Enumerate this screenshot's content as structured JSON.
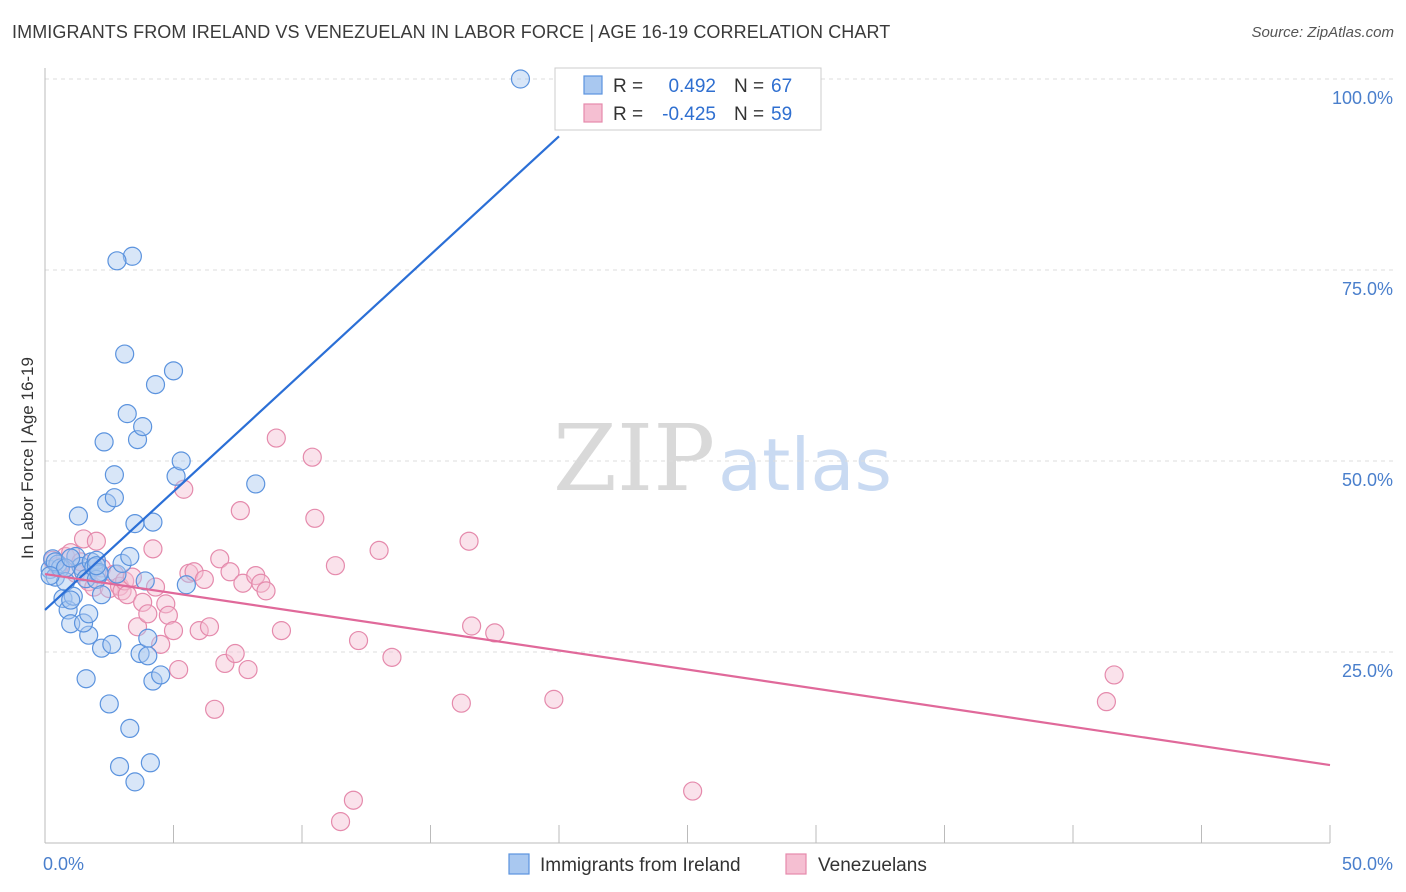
{
  "title": "IMMIGRANTS FROM IRELAND VS VENEZUELAN IN LABOR FORCE | AGE 16-19 CORRELATION CHART",
  "source": "Source: ZipAtlas.com",
  "watermark": {
    "zip": "ZIP",
    "atlas": "atlas"
  },
  "colors": {
    "blue_fill": "#a9c8f0",
    "blue_stroke": "#5b93de",
    "blue_line": "#2b6fd6",
    "pink_fill": "#f5bfd2",
    "pink_stroke": "#e58aac",
    "pink_line": "#e0699a",
    "grid": "#dddddd",
    "axis": "#bbbbbb",
    "tick_label": "#4a7fcc"
  },
  "legend": {
    "r_label": "R =",
    "n_label": "N =",
    "series": [
      {
        "r": "0.492",
        "n": "67"
      },
      {
        "r": "-0.425",
        "n": "59"
      }
    ]
  },
  "chart_data": {
    "type": "scatter",
    "ylabel": "In Labor Force | Age 16-19",
    "xlim": [
      0,
      50
    ],
    "ylim": [
      0,
      100
    ],
    "x_tick_labels": [
      "0.0%",
      "50.0%"
    ],
    "y_ticks": [
      25,
      50,
      75,
      100
    ],
    "y_tick_labels": [
      "25.0%",
      "50.0%",
      "75.0%",
      "100.0%"
    ],
    "grid": true,
    "legend_position": "top-center",
    "series": [
      {
        "name": "Immigrants from Ireland",
        "color": "#5b93de",
        "trend": {
          "x": [
            0,
            20
          ],
          "y": [
            30.5,
            92.5
          ]
        },
        "points": [
          [
            0.2,
            35.8
          ],
          [
            0.3,
            37.2
          ],
          [
            0.4,
            34.8
          ],
          [
            0.5,
            36.5
          ],
          [
            0.6,
            36.0
          ],
          [
            0.7,
            32.0
          ],
          [
            0.8,
            34.2
          ],
          [
            0.9,
            30.5
          ],
          [
            1.0,
            28.7
          ],
          [
            1.1,
            32.3
          ],
          [
            1.2,
            37.5
          ],
          [
            1.3,
            42.8
          ],
          [
            1.4,
            36.2
          ],
          [
            1.5,
            35.5
          ],
          [
            1.6,
            34.6
          ],
          [
            1.7,
            27.2
          ],
          [
            1.8,
            36.8
          ],
          [
            1.9,
            36.1
          ],
          [
            2.0,
            37.0
          ],
          [
            2.1,
            35.2
          ],
          [
            1.0,
            31.8
          ],
          [
            1.5,
            28.8
          ],
          [
            1.7,
            30.0
          ],
          [
            2.0,
            34.5
          ],
          [
            2.1,
            35.4
          ],
          [
            2.2,
            25.5
          ],
          [
            2.3,
            52.5
          ],
          [
            2.4,
            44.5
          ],
          [
            2.5,
            18.2
          ],
          [
            2.6,
            26.0
          ],
          [
            2.7,
            48.2
          ],
          [
            2.7,
            45.2
          ],
          [
            2.8,
            35.2
          ],
          [
            2.9,
            10.0
          ],
          [
            3.0,
            36.6
          ],
          [
            3.1,
            64.0
          ],
          [
            3.2,
            56.2
          ],
          [
            3.3,
            37.5
          ],
          [
            3.4,
            76.8
          ],
          [
            3.5,
            41.8
          ],
          [
            3.6,
            52.8
          ],
          [
            3.7,
            24.8
          ],
          [
            3.8,
            54.5
          ],
          [
            3.9,
            34.3
          ],
          [
            4.0,
            26.8
          ],
          [
            4.1,
            10.5
          ],
          [
            4.2,
            21.2
          ],
          [
            4.3,
            60.0
          ],
          [
            4.5,
            22.0
          ],
          [
            5.0,
            61.8
          ],
          [
            5.1,
            48.0
          ],
          [
            5.3,
            50.0
          ],
          [
            5.5,
            33.8
          ],
          [
            2.8,
            76.2
          ],
          [
            3.3,
            15.0
          ],
          [
            3.5,
            8.0
          ],
          [
            4.0,
            24.5
          ],
          [
            4.2,
            42.0
          ],
          [
            8.2,
            47.0
          ],
          [
            18.5,
            100.0
          ],
          [
            0.4,
            36.8
          ],
          [
            0.8,
            36.0
          ],
          [
            1.0,
            37.3
          ],
          [
            1.6,
            21.5
          ],
          [
            2.0,
            36.3
          ],
          [
            2.2,
            32.5
          ],
          [
            0.2,
            35.0
          ]
        ]
      },
      {
        "name": "Venezuelans",
        "color": "#e58aac",
        "trend": {
          "x": [
            0,
            50
          ],
          "y": [
            35.2,
            10.2
          ]
        },
        "points": [
          [
            0.3,
            37.0
          ],
          [
            0.5,
            36.2
          ],
          [
            0.8,
            37.5
          ],
          [
            1.0,
            38.0
          ],
          [
            1.2,
            35.3
          ],
          [
            1.4,
            36.8
          ],
          [
            1.5,
            39.8
          ],
          [
            1.7,
            34.2
          ],
          [
            1.9,
            33.5
          ],
          [
            2.0,
            39.5
          ],
          [
            2.2,
            36.0
          ],
          [
            2.5,
            33.3
          ],
          [
            2.7,
            35.2
          ],
          [
            2.9,
            33.6
          ],
          [
            3.0,
            33.0
          ],
          [
            3.1,
            34.3
          ],
          [
            3.2,
            32.5
          ],
          [
            3.4,
            34.8
          ],
          [
            3.6,
            28.3
          ],
          [
            3.8,
            31.5
          ],
          [
            4.0,
            30.0
          ],
          [
            4.2,
            38.5
          ],
          [
            4.3,
            33.5
          ],
          [
            4.5,
            26.0
          ],
          [
            4.7,
            31.3
          ],
          [
            4.8,
            29.8
          ],
          [
            5.0,
            27.8
          ],
          [
            5.2,
            22.7
          ],
          [
            5.4,
            46.3
          ],
          [
            5.6,
            35.3
          ],
          [
            5.8,
            35.5
          ],
          [
            6.0,
            27.8
          ],
          [
            6.2,
            34.5
          ],
          [
            6.4,
            28.3
          ],
          [
            6.6,
            17.5
          ],
          [
            6.8,
            37.2
          ],
          [
            7.0,
            23.5
          ],
          [
            7.2,
            35.5
          ],
          [
            7.4,
            24.8
          ],
          [
            7.6,
            43.5
          ],
          [
            7.7,
            34.0
          ],
          [
            7.9,
            22.7
          ],
          [
            8.2,
            35.0
          ],
          [
            8.4,
            34.0
          ],
          [
            8.6,
            33.0
          ],
          [
            9.0,
            53.0
          ],
          [
            9.2,
            27.8
          ],
          [
            10.4,
            50.5
          ],
          [
            10.5,
            42.5
          ],
          [
            11.3,
            36.3
          ],
          [
            11.5,
            2.8
          ],
          [
            12.0,
            5.6
          ],
          [
            12.2,
            26.5
          ],
          [
            13.5,
            24.3
          ],
          [
            13.0,
            38.3
          ],
          [
            16.2,
            18.3
          ],
          [
            16.5,
            39.5
          ],
          [
            16.6,
            28.4
          ],
          [
            17.5,
            27.5
          ]
        ]
      }
    ]
  },
  "extra_pink_points": [
    [
      19.8,
      18.8
    ],
    [
      25.2,
      6.8
    ],
    [
      41.3,
      18.5
    ],
    [
      41.6,
      22.0
    ]
  ],
  "bottom_legend": {
    "items": [
      {
        "label": "Immigrants from Ireland"
      },
      {
        "label": "Venezuelans"
      }
    ]
  }
}
